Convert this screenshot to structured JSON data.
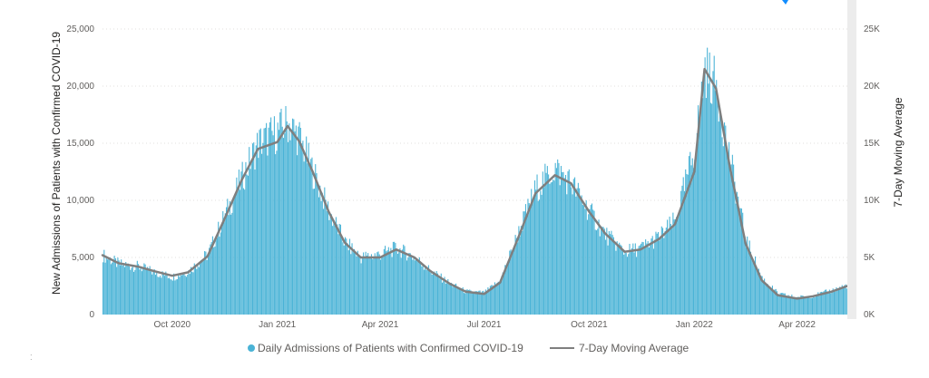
{
  "chart_data": {
    "type": "bar",
    "title": "",
    "ylabel_left": "New Admissions of Patients with Confirmed COVID-19",
    "ylabel_right": "7-Day Moving Average",
    "ylim": [
      0,
      25000
    ],
    "ylim_right": [
      0,
      25000
    ],
    "x_range": [
      "2020-08-01",
      "2022-05-15"
    ],
    "y_ticks_left": [
      "0",
      "5,000",
      "10,000",
      "15,000",
      "20,000",
      "25,000"
    ],
    "y_ticks_right": [
      "0K",
      "5K",
      "10K",
      "15K",
      "20K",
      "25K"
    ],
    "x_ticks": [
      {
        "label": "Oct 2020",
        "date": "2020-10-01"
      },
      {
        "label": "Jan 2021",
        "date": "2021-01-01"
      },
      {
        "label": "Apr 2021",
        "date": "2021-04-01"
      },
      {
        "label": "Jul 2021",
        "date": "2021-07-01"
      },
      {
        "label": "Oct 2021",
        "date": "2021-10-01"
      },
      {
        "label": "Jan 2022",
        "date": "2022-01-01"
      },
      {
        "label": "Apr 2022",
        "date": "2022-04-01"
      }
    ],
    "grid": true,
    "legend_position": "bottom",
    "colors": {
      "bars": "#4ab3d6",
      "moving_average": "#7f7f7f"
    },
    "series": [
      {
        "name": "Daily Admissions of Patients with Confirmed COVID-19",
        "type": "bar",
        "points": [
          [
            "2020-08-01",
            5200
          ],
          [
            "2020-08-15",
            4400
          ],
          [
            "2020-09-01",
            4200
          ],
          [
            "2020-09-15",
            3700
          ],
          [
            "2020-10-01",
            3300
          ],
          [
            "2020-10-15",
            3800
          ],
          [
            "2020-11-01",
            5300
          ],
          [
            "2020-11-15",
            8500
          ],
          [
            "2020-12-01",
            12000
          ],
          [
            "2020-12-15",
            15000
          ],
          [
            "2021-01-01",
            16000
          ],
          [
            "2021-01-10",
            16800
          ],
          [
            "2021-01-20",
            15500
          ],
          [
            "2021-02-01",
            12500
          ],
          [
            "2021-02-15",
            9000
          ],
          [
            "2021-03-01",
            6300
          ],
          [
            "2021-03-15",
            5000
          ],
          [
            "2021-04-01",
            5300
          ],
          [
            "2021-04-15",
            5800
          ],
          [
            "2021-05-01",
            5000
          ],
          [
            "2021-05-15",
            3800
          ],
          [
            "2021-06-01",
            2700
          ],
          [
            "2021-06-15",
            2000
          ],
          [
            "2021-07-01",
            1900
          ],
          [
            "2021-07-15",
            3000
          ],
          [
            "2021-08-01",
            7500
          ],
          [
            "2021-08-15",
            11000
          ],
          [
            "2021-09-01",
            12800
          ],
          [
            "2021-09-15",
            11500
          ],
          [
            "2021-10-01",
            9000
          ],
          [
            "2021-10-15",
            7000
          ],
          [
            "2021-11-01",
            5500
          ],
          [
            "2021-11-15",
            5800
          ],
          [
            "2021-12-01",
            6800
          ],
          [
            "2021-12-15",
            8200
          ],
          [
            "2022-01-01",
            14500
          ],
          [
            "2022-01-10",
            21500
          ],
          [
            "2022-01-20",
            20000
          ],
          [
            "2022-02-01",
            13500
          ],
          [
            "2022-02-15",
            6500
          ],
          [
            "2022-03-01",
            3200
          ],
          [
            "2022-03-15",
            1800
          ],
          [
            "2022-04-01",
            1500
          ],
          [
            "2022-04-15",
            1650
          ],
          [
            "2022-05-01",
            2100
          ],
          [
            "2022-05-15",
            2600
          ]
        ]
      },
      {
        "name": "7-Day Moving Average",
        "type": "line",
        "points": [
          [
            "2020-08-01",
            5200
          ],
          [
            "2020-08-15",
            4500
          ],
          [
            "2020-09-01",
            4200
          ],
          [
            "2020-09-15",
            3800
          ],
          [
            "2020-10-01",
            3400
          ],
          [
            "2020-10-15",
            3700
          ],
          [
            "2020-11-01",
            5100
          ],
          [
            "2020-11-15",
            8200
          ],
          [
            "2020-12-01",
            11800
          ],
          [
            "2020-12-15",
            14500
          ],
          [
            "2021-01-01",
            15100
          ],
          [
            "2021-01-10",
            16500
          ],
          [
            "2021-01-20",
            15200
          ],
          [
            "2021-02-01",
            12500
          ],
          [
            "2021-02-15",
            9000
          ],
          [
            "2021-03-01",
            6300
          ],
          [
            "2021-03-15",
            5000
          ],
          [
            "2021-04-01",
            5000
          ],
          [
            "2021-04-15",
            5700
          ],
          [
            "2021-05-01",
            5000
          ],
          [
            "2021-05-15",
            3800
          ],
          [
            "2021-06-01",
            2700
          ],
          [
            "2021-06-15",
            2000
          ],
          [
            "2021-07-01",
            1800
          ],
          [
            "2021-07-15",
            2800
          ],
          [
            "2021-08-01",
            7000
          ],
          [
            "2021-08-15",
            10600
          ],
          [
            "2021-09-01",
            12200
          ],
          [
            "2021-09-15",
            11500
          ],
          [
            "2021-10-01",
            9000
          ],
          [
            "2021-10-15",
            7100
          ],
          [
            "2021-11-01",
            5500
          ],
          [
            "2021-11-15",
            5700
          ],
          [
            "2021-12-01",
            6600
          ],
          [
            "2021-12-15",
            7900
          ],
          [
            "2022-01-01",
            12500
          ],
          [
            "2022-01-10",
            21500
          ],
          [
            "2022-01-20",
            19800
          ],
          [
            "2022-02-01",
            13000
          ],
          [
            "2022-02-15",
            6200
          ],
          [
            "2022-03-01",
            3000
          ],
          [
            "2022-03-15",
            1700
          ],
          [
            "2022-04-01",
            1400
          ],
          [
            "2022-04-15",
            1600
          ],
          [
            "2022-05-01",
            2000
          ],
          [
            "2022-05-15",
            2500
          ]
        ]
      }
    ]
  }
}
